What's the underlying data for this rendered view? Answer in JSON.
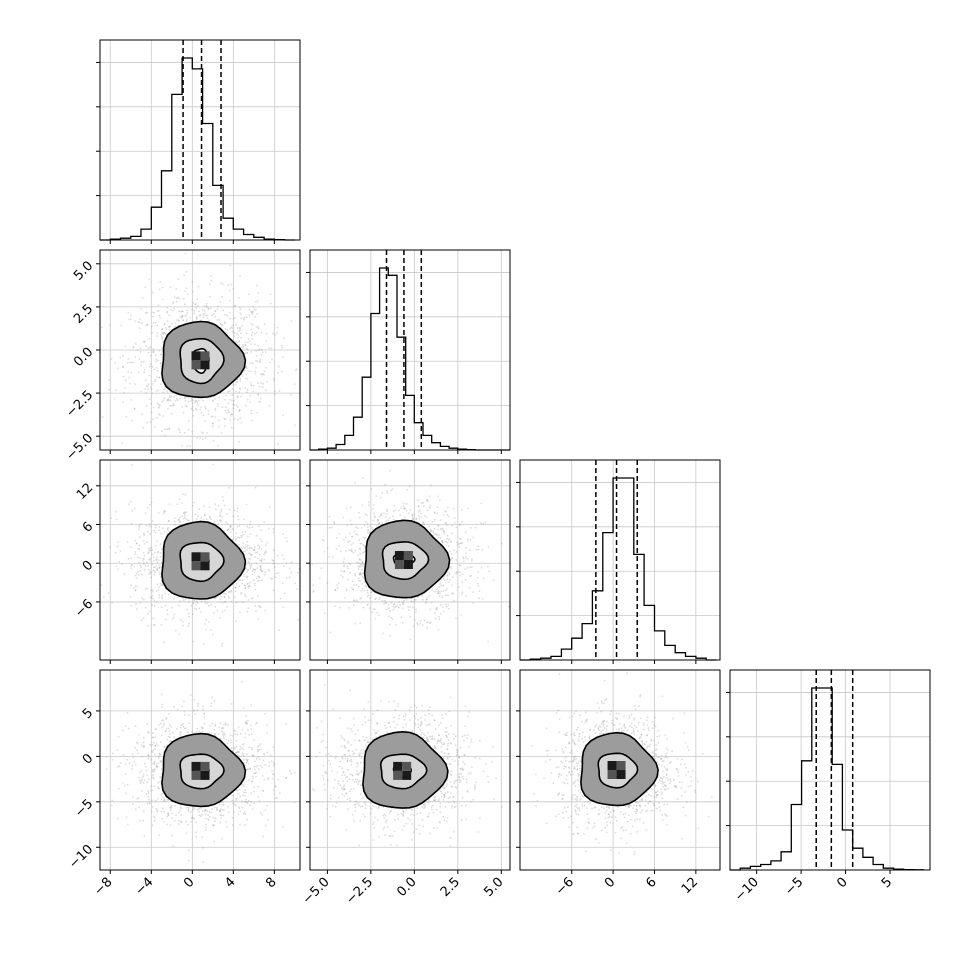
{
  "chart_data": {
    "type": "corner",
    "grid": true,
    "dimensions": 4,
    "variables": [
      {
        "xlim": [
          -9,
          10.5
        ],
        "ticks": [
          -8,
          -4,
          0,
          4,
          8
        ],
        "tick_labels": [
          "−8",
          "−4",
          "0",
          "4",
          "8"
        ],
        "quantiles": [
          -0.9,
          0.9,
          2.8
        ],
        "hist_bin_start": -9,
        "hist_bin_width": 1,
        "hist_counts": [
          0,
          0.5,
          1,
          2,
          6,
          18,
          38,
          80,
          100,
          94,
          64,
          30,
          12,
          6,
          3,
          1.5,
          0.5,
          0.2,
          0
        ]
      },
      {
        "xlim": [
          -6,
          5.5
        ],
        "ticks": [
          -5.0,
          -2.5,
          0.0,
          2.5,
          5.0
        ],
        "tick_labels": [
          "−5.0",
          "−2.5",
          "0.0",
          "2.5",
          "5.0"
        ],
        "quantiles": [
          -1.6,
          -0.6,
          0.4
        ],
        "hist_bin_start": -6,
        "hist_bin_width": 0.5,
        "hist_counts": [
          0,
          0.5,
          1,
          3,
          8,
          18,
          40,
          75,
          100,
          96,
          62,
          30,
          15,
          8,
          4,
          2,
          1,
          0.5,
          0.2,
          0,
          0,
          0,
          0
        ]
      },
      {
        "xlim": [
          -13.5,
          15.5
        ],
        "ticks": [
          -6,
          0,
          6,
          12
        ],
        "tick_labels": [
          "−6",
          "0",
          "6",
          "12"
        ],
        "quantiles": [
          -2.5,
          0.5,
          3.5
        ],
        "hist_bin_start": -13.5,
        "hist_bin_width": 1.5,
        "hist_counts": [
          0,
          0.5,
          1,
          2,
          6,
          12,
          20,
          38,
          70,
          100,
          100,
          58,
          30,
          16,
          8,
          4,
          2,
          1,
          0
        ]
      },
      {
        "xlim": [
          -13,
          9.5
        ],
        "ticks": [
          -10,
          -5,
          0,
          5
        ],
        "tick_labels": [
          "−10",
          "−5",
          "0",
          "5"
        ],
        "quantiles": [
          -3.3,
          -1.6,
          0.8
        ],
        "hist_bin_start": -13,
        "hist_bin_width": 1.15,
        "hist_counts": [
          0,
          1,
          2,
          3,
          5,
          10,
          36,
          60,
          100,
          100,
          58,
          22,
          12,
          7,
          3,
          1,
          0.5,
          0.2,
          0.1
        ]
      }
    ],
    "scatter_panels": [
      {
        "row": 1,
        "col": 0,
        "cx": 0.8,
        "cy": -0.6,
        "sx": 2.5,
        "sy": 1.4,
        "levels": [
          [
            0.8,
            0.7
          ],
          [
            2.1,
            1.3
          ],
          [
            4.0,
            2.2
          ]
        ]
      },
      {
        "row": 2,
        "col": 0,
        "cx": 0.8,
        "cy": 0.3,
        "sx": 2.5,
        "sy": 3.1,
        "levels": [
          [
            0.8,
            1.0
          ],
          [
            2.1,
            3.0
          ],
          [
            4.0,
            6.0
          ]
        ]
      },
      {
        "row": 2,
        "col": 1,
        "cx": -0.6,
        "cy": 0.5,
        "sx": 1.4,
        "sy": 3.1,
        "levels": [
          [
            0.6,
            1.0
          ],
          [
            1.3,
            2.9
          ],
          [
            2.4,
            6.0
          ]
        ]
      },
      {
        "row": 3,
        "col": 0,
        "cx": 0.8,
        "cy": -1.6,
        "sx": 2.5,
        "sy": 2.2,
        "levels": [
          [
            0.8,
            0.7
          ],
          [
            2.1,
            1.9
          ],
          [
            4.0,
            4.0
          ]
        ]
      },
      {
        "row": 3,
        "col": 1,
        "cx": -0.7,
        "cy": -1.6,
        "sx": 1.4,
        "sy": 2.2,
        "levels": [
          [
            0.5,
            0.7
          ],
          [
            1.3,
            1.9
          ],
          [
            2.4,
            4.2
          ]
        ]
      },
      {
        "row": 3,
        "col": 2,
        "cx": 0.5,
        "cy": -1.5,
        "sx": 3.1,
        "sy": 2.2,
        "levels": [
          [
            1.0,
            0.7
          ],
          [
            2.8,
            1.9
          ],
          [
            5.5,
            4.0
          ]
        ]
      }
    ],
    "y_tick_rows": [
      {
        "row": 1,
        "ylim": [
          -5.8,
          5.8
        ],
        "ticks": [
          -5.0,
          -2.5,
          0.0,
          2.5,
          5.0
        ],
        "tick_labels": [
          "−5.0",
          "−2.5",
          "0.0",
          "2.5",
          "5.0"
        ]
      },
      {
        "row": 2,
        "ylim": [
          -15,
          16
        ],
        "ticks": [
          -6,
          0,
          6,
          12
        ],
        "tick_labels": [
          "−6",
          "0",
          "6",
          "12"
        ]
      },
      {
        "row": 3,
        "ylim": [
          -12.5,
          9.5
        ],
        "ticks": [
          -10,
          -5,
          0,
          5
        ],
        "tick_labels": [
          "−10",
          "−5",
          "0",
          "5"
        ]
      }
    ]
  }
}
